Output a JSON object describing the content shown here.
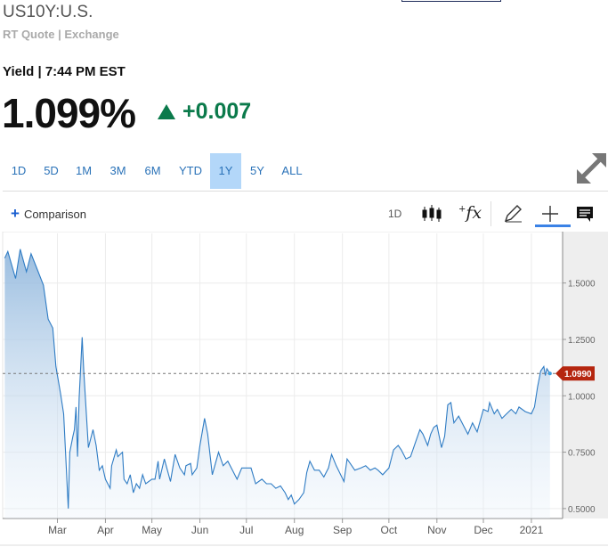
{
  "header": {
    "title": "US10Y:U.S.",
    "subtitle": "RT Quote | Exchange",
    "yield_line": "Yield | 7:44 PM EST",
    "price": "1.099%",
    "change": "+0.007",
    "change_direction": "up",
    "up_color": "#0b7a4b"
  },
  "ranges": [
    {
      "label": "1D"
    },
    {
      "label": "5D"
    },
    {
      "label": "1M"
    },
    {
      "label": "3M"
    },
    {
      "label": "6M"
    },
    {
      "label": "YTD"
    },
    {
      "label": "1Y",
      "selected": true
    },
    {
      "label": "5Y"
    },
    {
      "label": "ALL"
    }
  ],
  "toolbar": {
    "comparison_label": "Comparison",
    "interval_label": "1D",
    "icons": [
      "candlestick-icon",
      "function-icon",
      "pencil-icon",
      "crosshair-icon",
      "comment-icon",
      "expand-icon"
    ]
  },
  "chart_data": {
    "type": "area",
    "ylim": [
      0.456,
      1.72
    ],
    "yticks": [
      "0.5000",
      "0.7500",
      "1.0000",
      "1.2500",
      "1.5000"
    ],
    "xticks": [
      {
        "label": "Mar",
        "date": "2020-03-01"
      },
      {
        "label": "Apr",
        "date": "2020-04-01"
      },
      {
        "label": "May",
        "date": "2020-05-01"
      },
      {
        "label": "Jun",
        "date": "2020-06-01"
      },
      {
        "label": "Jul",
        "date": "2020-07-01"
      },
      {
        "label": "Aug",
        "date": "2020-08-01"
      },
      {
        "label": "Sep",
        "date": "2020-09-01"
      },
      {
        "label": "Oct",
        "date": "2020-10-01"
      },
      {
        "label": "Nov",
        "date": "2020-11-01"
      },
      {
        "label": "Dec",
        "date": "2020-12-01"
      },
      {
        "label": "2021",
        "date": "2021-01-01"
      }
    ],
    "grid": true,
    "last_value_label": "1.0990",
    "last_value": 1.099,
    "line_color": "#2f7cc4",
    "last_marker_color": "#b5260f",
    "series": [
      {
        "x": [
          "2020-01-27",
          "2020-01-29",
          "2020-02-03",
          "2020-02-06",
          "2020-02-10",
          "2020-02-13",
          "2020-02-17",
          "2020-02-21",
          "2020-02-24",
          "2020-02-27",
          "2020-02-29",
          "2020-03-03",
          "2020-03-05",
          "2020-03-08",
          "2020-03-09",
          "2020-03-11",
          "2020-03-12",
          "2020-03-13",
          "2020-03-14",
          "2020-03-15",
          "2020-03-17",
          "2020-03-18",
          "2020-03-21",
          "2020-03-24",
          "2020-03-26",
          "2020-03-28",
          "2020-03-30",
          "2020-04-01",
          "2020-04-04",
          "2020-04-05",
          "2020-04-08",
          "2020-04-09",
          "2020-04-12",
          "2020-04-13",
          "2020-04-15",
          "2020-04-17",
          "2020-04-19",
          "2020-04-21",
          "2020-04-23",
          "2020-04-25",
          "2020-04-27",
          "2020-05-01",
          "2020-05-03",
          "2020-05-05",
          "2020-05-06",
          "2020-05-09",
          "2020-05-13",
          "2020-05-16",
          "2020-05-19",
          "2020-05-22",
          "2020-05-23",
          "2020-05-26",
          "2020-05-27",
          "2020-05-30",
          "2020-06-01",
          "2020-06-04",
          "2020-06-06",
          "2020-06-09",
          "2020-06-11",
          "2020-06-13",
          "2020-06-16",
          "2020-06-19",
          "2020-06-22",
          "2020-06-25",
          "2020-06-28",
          "2020-07-04",
          "2020-07-07",
          "2020-07-11",
          "2020-07-14",
          "2020-07-17",
          "2020-07-20",
          "2020-07-23",
          "2020-07-26",
          "2020-07-28",
          "2020-07-30",
          "2020-08-01",
          "2020-08-04",
          "2020-08-07",
          "2020-08-09",
          "2020-08-11",
          "2020-08-14",
          "2020-08-17",
          "2020-08-20",
          "2020-08-23",
          "2020-08-25",
          "2020-08-28",
          "2020-09-02",
          "2020-09-04",
          "2020-09-06",
          "2020-09-09",
          "2020-09-13",
          "2020-09-16",
          "2020-09-19",
          "2020-09-22",
          "2020-09-24",
          "2020-09-27",
          "2020-10-01",
          "2020-10-04",
          "2020-10-07",
          "2020-10-09",
          "2020-10-12",
          "2020-10-15",
          "2020-10-18",
          "2020-10-21",
          "2020-10-23",
          "2020-10-26",
          "2020-10-28",
          "2020-10-30",
          "2020-11-01",
          "2020-11-04",
          "2020-11-06",
          "2020-11-08",
          "2020-11-10",
          "2020-11-12",
          "2020-11-15",
          "2020-11-18",
          "2020-11-21",
          "2020-11-24",
          "2020-11-27",
          "2020-12-01",
          "2020-12-04",
          "2020-12-05",
          "2020-12-08",
          "2020-12-10",
          "2020-12-13",
          "2020-12-16",
          "2020-12-19",
          "2020-12-22",
          "2020-12-24",
          "2020-12-28",
          "2021-01-01",
          "2021-01-03",
          "2021-01-05",
          "2021-01-07",
          "2021-01-09",
          "2021-01-10",
          "2021-01-11",
          "2021-01-13"
        ],
        "y": [
          1.61,
          1.64,
          1.52,
          1.65,
          1.55,
          1.63,
          1.56,
          1.49,
          1.34,
          1.3,
          1.13,
          1.01,
          0.92,
          0.5,
          0.75,
          0.82,
          0.85,
          0.95,
          0.73,
          0.99,
          1.26,
          1.11,
          0.77,
          0.85,
          0.78,
          0.67,
          0.69,
          0.63,
          0.59,
          0.69,
          0.76,
          0.73,
          0.75,
          0.63,
          0.61,
          0.65,
          0.57,
          0.61,
          0.59,
          0.65,
          0.61,
          0.63,
          0.63,
          0.71,
          0.63,
          0.72,
          0.62,
          0.74,
          0.68,
          0.65,
          0.69,
          0.7,
          0.65,
          0.68,
          0.78,
          0.9,
          0.83,
          0.65,
          0.7,
          0.75,
          0.69,
          0.71,
          0.67,
          0.63,
          0.68,
          0.68,
          0.61,
          0.63,
          0.61,
          0.61,
          0.59,
          0.6,
          0.57,
          0.54,
          0.56,
          0.52,
          0.54,
          0.57,
          0.66,
          0.71,
          0.67,
          0.67,
          0.64,
          0.68,
          0.74,
          0.69,
          0.62,
          0.72,
          0.7,
          0.67,
          0.68,
          0.69,
          0.67,
          0.68,
          0.67,
          0.65,
          0.68,
          0.76,
          0.78,
          0.76,
          0.72,
          0.73,
          0.79,
          0.85,
          0.83,
          0.78,
          0.83,
          0.86,
          0.87,
          0.77,
          0.82,
          0.96,
          0.97,
          0.88,
          0.91,
          0.87,
          0.83,
          0.88,
          0.84,
          0.94,
          0.93,
          0.97,
          0.92,
          0.94,
          0.9,
          0.92,
          0.94,
          0.92,
          0.95,
          0.93,
          0.92,
          0.95,
          1.04,
          1.11,
          1.13,
          1.09,
          1.12,
          1.099
        ]
      }
    ]
  }
}
